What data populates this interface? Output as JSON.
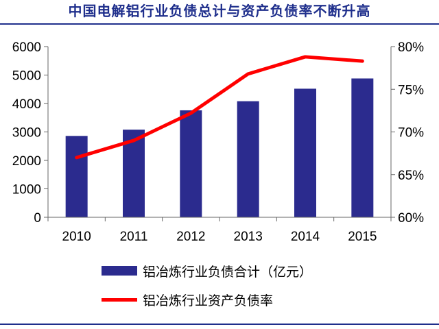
{
  "title": "中国电解铝行业负债总计与资产负债率不断升高",
  "colors": {
    "bar": "#2b2b8e",
    "line": "#ff0000",
    "title": "#1f2f8c",
    "axis": "#666666"
  },
  "chart_data": {
    "type": "bar+line",
    "categories": [
      "2010",
      "2011",
      "2012",
      "2013",
      "2014",
      "2015"
    ],
    "series": [
      {
        "name": "铝冶炼行业负债合计（亿元）",
        "type": "bar",
        "axis": "left",
        "values": [
          2860,
          3080,
          3760,
          4080,
          4520,
          4880
        ]
      },
      {
        "name": "铝冶炼行业资产负债率",
        "type": "line",
        "axis": "right",
        "values": [
          67.0,
          69.0,
          72.2,
          76.8,
          78.8,
          78.3
        ]
      }
    ],
    "y_left": {
      "min": 0,
      "max": 6000,
      "ticks": [
        "0",
        "1000",
        "2000",
        "3000",
        "4000",
        "5000",
        "6000"
      ]
    },
    "y_right": {
      "min": 60,
      "max": 80,
      "ticks": [
        "60%",
        "65%",
        "70%",
        "75%",
        "80%"
      ]
    },
    "grid": false,
    "legend_position": "bottom"
  }
}
